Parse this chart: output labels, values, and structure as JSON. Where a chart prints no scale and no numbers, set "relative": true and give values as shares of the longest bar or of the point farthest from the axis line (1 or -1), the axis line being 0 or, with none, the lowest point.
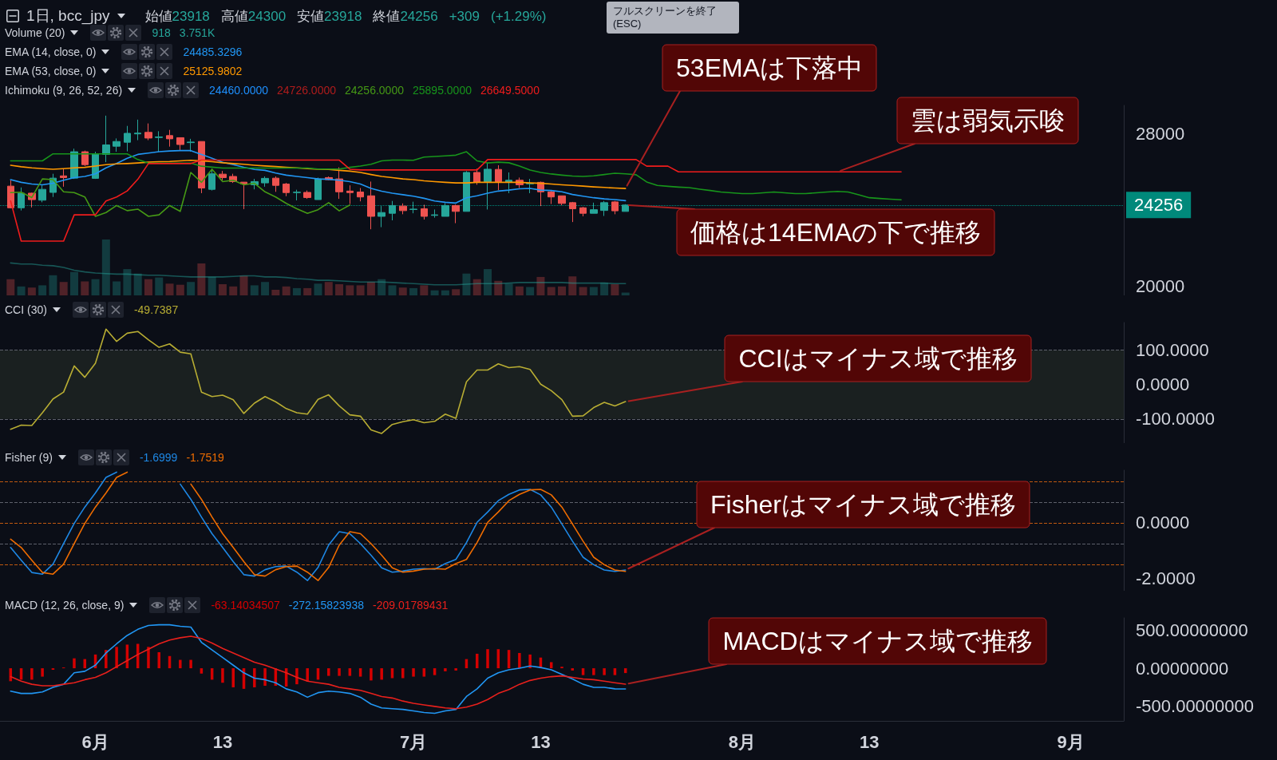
{
  "chart_data": [
    {
      "type": "candlestick",
      "title": "1日, bcc_jpy",
      "subtitle": "始値23918 高値24300 安値23918 終値24256 +309 (+1.29%)",
      "x": [
        "--05-24",
        "--05-25",
        "--05-26",
        "--05-27",
        "--05-28",
        "--05-29",
        "--05-30",
        "--05-31",
        "--06-01",
        "--06-02",
        "--06-03",
        "--06-04",
        "--06-05",
        "--06-06",
        "--06-07",
        "--06-08",
        "--06-09",
        "--06-10",
        "--06-11",
        "--06-12",
        "--06-13",
        "--06-14",
        "--06-15",
        "--06-16",
        "--06-17",
        "--06-18",
        "--06-19",
        "--06-20",
        "--06-21",
        "--06-22",
        "--06-23",
        "--06-24",
        "--06-25",
        "--06-26",
        "--06-27",
        "--06-28",
        "--06-29",
        "--06-30",
        "--07-01",
        "--07-02",
        "--07-03",
        "--07-04",
        "--07-05",
        "--07-06",
        "--07-07",
        "--07-08",
        "--07-09",
        "--07-10",
        "--07-11",
        "--07-12",
        "--07-13",
        "--07-14",
        "--07-15",
        "--07-16",
        "--07-17",
        "--07-18",
        "--07-19",
        "--07-20",
        "--07-21"
      ],
      "ohlc": [
        [
          25250,
          25560,
          24080,
          24110
        ],
        [
          24110,
          25180,
          23970,
          24880
        ],
        [
          24880,
          24900,
          24130,
          24540
        ],
        [
          24510,
          25290,
          24400,
          25080
        ],
        [
          24920,
          25900,
          24680,
          25670
        ],
        [
          25790,
          26170,
          25220,
          25700
        ],
        [
          25670,
          27220,
          25630,
          27060
        ],
        [
          27060,
          27120,
          26310,
          26380
        ],
        [
          25660,
          27060,
          25630,
          26950
        ],
        [
          26920,
          28960,
          26510,
          27420
        ],
        [
          27350,
          27760,
          27060,
          27600
        ],
        [
          27560,
          28420,
          27080,
          28030
        ],
        [
          28000,
          28750,
          27670,
          28040
        ],
        [
          28080,
          28550,
          27670,
          27780
        ],
        [
          27810,
          28140,
          27060,
          27840
        ],
        [
          27910,
          28210,
          27330,
          27740
        ],
        [
          27800,
          27800,
          27150,
          27440
        ],
        [
          27540,
          27740,
          27060,
          27570
        ],
        [
          27600,
          27600,
          24880,
          25150
        ],
        [
          25080,
          26170,
          25020,
          25900
        ],
        [
          25880,
          26050,
          25560,
          25700
        ],
        [
          25760,
          25900,
          25420,
          25490
        ],
        [
          25460,
          25460,
          24040,
          25360
        ],
        [
          25320,
          25630,
          25080,
          25490
        ],
        [
          25420,
          25760,
          25220,
          25660
        ],
        [
          25670,
          25760,
          24950,
          25290
        ],
        [
          25360,
          25420,
          24720,
          24910
        ],
        [
          24910,
          25060,
          24500,
          24930
        ],
        [
          24920,
          25020,
          24580,
          24650
        ],
        [
          24540,
          25700,
          24540,
          25630
        ],
        [
          25700,
          25760,
          25560,
          25590
        ],
        [
          25630,
          26240,
          24580,
          24950
        ],
        [
          24990,
          25290,
          24310,
          24910
        ],
        [
          24940,
          25150,
          24450,
          24680
        ],
        [
          24740,
          25490,
          22980,
          23660
        ],
        [
          23660,
          24200,
          23090,
          23860
        ],
        [
          23820,
          24470,
          23450,
          24230
        ],
        [
          24200,
          24340,
          23770,
          23960
        ],
        [
          24020,
          24430,
          23820,
          24040
        ],
        [
          24060,
          24270,
          23490,
          23660
        ],
        [
          23710,
          24020,
          23590,
          23740
        ],
        [
          23660,
          24360,
          23660,
          24230
        ],
        [
          24230,
          24280,
          23300,
          23920
        ],
        [
          23920,
          26040,
          23920,
          25970
        ],
        [
          25970,
          26170,
          25320,
          25450
        ],
        [
          25490,
          26480,
          24020,
          26140
        ],
        [
          26130,
          26350,
          25040,
          25490
        ],
        [
          25470,
          25970,
          24880,
          25560
        ],
        [
          25560,
          25700,
          25150,
          25320
        ],
        [
          25370,
          25630,
          24880,
          25400
        ],
        [
          25450,
          25490,
          24200,
          24950
        ],
        [
          24950,
          25020,
          24310,
          24680
        ],
        [
          24740,
          24740,
          24240,
          24340
        ],
        [
          24380,
          24420,
          23360,
          24060
        ],
        [
          24110,
          24160,
          23660,
          23820
        ],
        [
          23820,
          24380,
          23820,
          24010
        ],
        [
          23970,
          24470,
          23680,
          24380
        ],
        [
          24420,
          24470,
          23770,
          23950
        ],
        [
          23918,
          24300,
          23918,
          24256
        ]
      ],
      "colors": [
        "#ef5350",
        "#26a69a",
        "#ef5350",
        "#26a69a",
        "#26a69a",
        "#ef5350",
        "#26a69a",
        "#ef5350",
        "#26a69a",
        "#26a69a",
        "#26a69a",
        "#26a69a",
        "#26a69a",
        "#ef5350",
        "#26a69a",
        "#ef5350",
        "#ef5350",
        "#26a69a",
        "#ef5350",
        "#26a69a",
        "#ef5350",
        "#ef5350",
        "#ef5350",
        "#26a69a",
        "#26a69a",
        "#ef5350",
        "#ef5350",
        "#26a69a",
        "#ef5350",
        "#26a69a",
        "#ef5350",
        "#ef5350",
        "#ef5350",
        "#ef5350",
        "#ef5350",
        "#26a69a",
        "#26a69a",
        "#ef5350",
        "#26a69a",
        "#ef5350",
        "#26a69a",
        "#26a69a",
        "#ef5350",
        "#26a69a",
        "#ef5350",
        "#26a69a",
        "#ef5350",
        "#26a69a",
        "#ef5350",
        "#26a69a",
        "#ef5350",
        "#ef5350",
        "#ef5350",
        "#ef5350",
        "#ef5350",
        "#26a69a",
        "#26a69a",
        "#ef5350",
        "#26a69a"
      ],
      "series": [
        {
          "type": "line",
          "color": "#2196f3",
          "values": [
            25590,
            25450,
            25360,
            25320,
            25400,
            25560,
            25700,
            25760,
            25900,
            26210,
            26440,
            26720,
            26920,
            26990,
            27060,
            27100,
            27120,
            27120,
            26920,
            26720,
            26510,
            26380,
            26240,
            26130,
            26080,
            25940,
            25830,
            25760,
            25700,
            25630,
            25610,
            25560,
            25490,
            25360,
            25130,
            24980,
            24880,
            24800,
            24720,
            24610,
            24470,
            24400,
            24360,
            24640,
            24740,
            24880,
            24990,
            25040,
            25110,
            25130,
            25040,
            25020,
            24950,
            24810,
            24720,
            24640,
            24580,
            24540,
            24485.3296
          ]
        },
        {
          "type": "line",
          "color": "#ff9800",
          "values": [
            26350,
            26270,
            26210,
            26170,
            26140,
            26170,
            26210,
            26240,
            26310,
            26380,
            26420,
            26440,
            26470,
            26510,
            26540,
            26550,
            26580,
            26610,
            26580,
            26540,
            26480,
            26440,
            26400,
            26350,
            26310,
            26280,
            26240,
            26210,
            26170,
            26140,
            26130,
            26080,
            26040,
            25970,
            25860,
            25760,
            25700,
            25630,
            25590,
            25530,
            25490,
            25450,
            25420,
            25420,
            25450,
            25450,
            25450,
            25450,
            25450,
            25420,
            25400,
            25360,
            25320,
            25290,
            25250,
            25210,
            25180,
            25150,
            25125.9802
          ]
        },
        {
          "type": "line",
          "color": "#459915",
          "x": [
            "--05-24",
            "--05-25",
            "--05-26",
            "--05-27",
            "--05-28",
            "--05-29",
            "--05-30",
            "--05-31",
            "--06-01",
            "--06-02",
            "--06-03",
            "--06-04",
            "--06-05",
            "--06-06",
            "--06-07",
            "--06-08",
            "--06-09",
            "--06-10",
            "--06-11",
            "--06-12",
            "--06-13",
            "--06-14",
            "--06-15",
            "--06-16",
            "--06-17",
            "--06-18",
            "--06-19",
            "--06-20",
            "--06-21",
            "--06-22",
            "--06-23",
            "--06-24",
            "--06-25"
          ],
          "values": [
            24910,
            24930,
            24650,
            25630,
            25590,
            24950,
            24910,
            24680,
            23660,
            23860,
            24230,
            23960,
            24040,
            23660,
            23740,
            24230,
            23920,
            25970,
            25450,
            26140,
            25490,
            25560,
            25320,
            25400,
            24950,
            24680,
            24340,
            24060,
            23820,
            24010,
            24380,
            23950,
            24256
          ]
        },
        {
          "type": "line",
          "color": "#17951b",
          "x": [
            "--05-24",
            "--05-25",
            "--05-26",
            "--05-27",
            "--05-28",
            "--05-29",
            "--05-30",
            "--05-31",
            "--06-01",
            "--06-02",
            "--06-03",
            "--06-04",
            "--06-05",
            "--06-06",
            "--06-07",
            "--06-08",
            "--06-09",
            "--06-10",
            "--06-11",
            "--06-12",
            "--06-13",
            "--06-14",
            "--06-15",
            "--06-16",
            "--06-17",
            "--06-18",
            "--06-19",
            "--06-20",
            "--06-21",
            "--06-22",
            "--06-23",
            "--06-24",
            "--06-25",
            "--06-26",
            "--06-27",
            "--06-28",
            "--06-29",
            "--06-30",
            "--07-01",
            "--07-02",
            "--07-03",
            "--07-04",
            "--07-05",
            "--07-06",
            "--07-07",
            "--07-08",
            "--07-09",
            "--07-10",
            "--07-11",
            "--07-12",
            "--07-13",
            "--07-14",
            "--07-15",
            "--07-16",
            "--07-17",
            "--07-18",
            "--07-19",
            "--07-20",
            "--07-21",
            "--07-22",
            "--07-23",
            "--07-24",
            "--07-25",
            "--07-26",
            "--07-27",
            "--07-28",
            "--07-29",
            "--07-30",
            "--07-31",
            "--08-01",
            "--08-02",
            "--08-03",
            "--08-04",
            "--08-05",
            "--08-06",
            "--08-07",
            "--08-08",
            "--08-09",
            "--08-10",
            "--08-11",
            "--08-12",
            "--08-13",
            "--08-14",
            "--08-15",
            "--08-16"
          ],
          "values": [
            26580,
            26580,
            26580,
            26580,
            26950,
            26950,
            26950,
            26950,
            26950,
            26950,
            26950,
            26950,
            26650,
            26460,
            26460,
            26460,
            26460,
            26460,
            26300,
            26250,
            26200,
            26200,
            26200,
            26200,
            26200,
            26200,
            26200,
            26200,
            26200,
            26150,
            26150,
            26150,
            26240,
            26310,
            26400,
            26580,
            26620,
            26620,
            26610,
            26780,
            26810,
            26840,
            26880,
            27060,
            26580,
            26470,
            26510,
            26480,
            26310,
            26100,
            25970,
            25890,
            25830,
            25780,
            25760,
            25790,
            25860,
            25930,
            25895,
            25850,
            25470,
            25290,
            25240,
            25200,
            25170,
            25090,
            25020,
            24940,
            24900,
            24860,
            24860,
            24900,
            24940,
            24900,
            24860,
            24860,
            24900,
            24940,
            24970,
            24940,
            24790,
            24640,
            24600,
            24560,
            24530
          ]
        },
        {
          "type": "line",
          "color": "#f01c1c",
          "x": [
            "--05-24",
            "--05-25",
            "--05-26",
            "--05-27",
            "--05-28",
            "--05-29",
            "--05-30",
            "--05-31",
            "--06-01",
            "--06-02",
            "--06-03",
            "--06-04",
            "--06-05",
            "--06-06",
            "--06-07",
            "--06-08",
            "--06-09",
            "--06-10",
            "--06-11",
            "--06-12",
            "--06-13",
            "--06-14",
            "--06-15",
            "--06-16",
            "--06-17",
            "--06-18",
            "--06-19",
            "--06-20",
            "--06-21",
            "--06-22",
            "--06-23",
            "--06-24",
            "--06-25",
            "--06-26",
            "--06-27",
            "--06-28",
            "--06-29",
            "--06-30",
            "--07-01",
            "--07-02",
            "--07-03",
            "--07-04",
            "--07-05",
            "--07-06",
            "--07-07",
            "--07-08",
            "--07-09",
            "--07-10",
            "--07-11",
            "--07-12",
            "--07-13",
            "--07-14",
            "--07-15",
            "--07-16",
            "--07-17",
            "--07-18",
            "--07-19",
            "--07-20",
            "--07-21",
            "--07-22",
            "--07-23",
            "--07-24",
            "--07-25",
            "--07-26",
            "--07-27",
            "--07-28",
            "--07-29",
            "--07-30",
            "--07-31",
            "--08-01",
            "--08-02",
            "--08-03",
            "--08-04",
            "--08-05",
            "--08-06",
            "--08-07",
            "--08-08",
            "--08-09",
            "--08-10",
            "--08-11",
            "--08-12",
            "--08-13",
            "--08-14",
            "--08-15",
            "--08-16"
          ],
          "values": [
            24470,
            22360,
            22360,
            22360,
            22360,
            22360,
            23740,
            23740,
            23740,
            24470,
            24680,
            25000,
            25610,
            26440,
            26440,
            26440,
            26440,
            26440,
            26620,
            26620,
            26620,
            26620,
            26620,
            26620,
            26620,
            26620,
            26620,
            26620,
            26620,
            26620,
            26620,
            26620,
            26140,
            26100,
            26100,
            26100,
            26100,
            26100,
            26100,
            26100,
            26100,
            26100,
            26100,
            26100,
            26100,
            26650,
            26650,
            26650,
            26650,
            26650,
            26650,
            26650,
            26650,
            26650,
            26650,
            26650,
            26650,
            26650,
            26649.5,
            26650,
            26300,
            26300,
            26300,
            26000,
            26000,
            26000,
            26000,
            26000,
            26000,
            26000,
            26000,
            26000,
            26000,
            26000,
            26000,
            26000,
            26000,
            26000,
            26000,
            26000,
            26000,
            26000,
            26000,
            26000,
            26000
          ]
        }
      ],
      "xlim": [
        "--05-23",
        "--09-06"
      ],
      "ylim": [
        19500,
        29500
      ],
      "yticks": [
        20000,
        28000
      ],
      "ref_lines": [
        {
          "axis": "y",
          "value": 24256,
          "label": "24256",
          "color": "#00897b",
          "line_style": "dotted"
        }
      ],
      "annotations": [
        "EMA (14, close, 0)",
        "24485.3296",
        "EMA (53, close, 0)",
        "25125.9802",
        "Ichimoku (9, 26, 52, 26)",
        "24460.0000",
        "24726.0000",
        "24256.0000",
        "25895.0000",
        "26649.5000",
        "フルスクリーンを終了 (ESC)",
        {
          "text": "53EMAは下落中",
          "x": "--07-21",
          "y": 25125.9802
        },
        {
          "text": "雲は弱気示唆",
          "x": "--08-10",
          "y": 26000
        },
        {
          "text": "価格は14EMAの下で推移",
          "x": "--07-21",
          "y": 24256
        }
      ],
      "tick_labels": "y"
    },
    {
      "type": "bar",
      "relative": true,
      "x": [
        "--05-24",
        "--05-25",
        "--05-26",
        "--05-27",
        "--05-28",
        "--05-29",
        "--05-30",
        "--05-31",
        "--06-01",
        "--06-02",
        "--06-03",
        "--06-04",
        "--06-05",
        "--06-06",
        "--06-07",
        "--06-08",
        "--06-09",
        "--06-10",
        "--06-11",
        "--06-12",
        "--06-13",
        "--06-14",
        "--06-15",
        "--06-16",
        "--06-17",
        "--06-18",
        "--06-19",
        "--06-20",
        "--06-21",
        "--06-22",
        "--06-23",
        "--06-24",
        "--06-25",
        "--06-26",
        "--06-27",
        "--06-28",
        "--06-29",
        "--06-30",
        "--07-01",
        "--07-02",
        "--07-03",
        "--07-04",
        "--07-05",
        "--07-06",
        "--07-07",
        "--07-08",
        "--07-09",
        "--07-10",
        "--07-11",
        "--07-12",
        "--07-13",
        "--07-14",
        "--07-15",
        "--07-16",
        "--07-17",
        "--07-18",
        "--07-19",
        "--07-20",
        "--07-21"
      ],
      "series": [
        {
          "type": "bar",
          "color": "#26a69a",
          "colors": [
            "#ef5350",
            "#26a69a",
            "#ef5350",
            "#26a69a",
            "#26a69a",
            "#ef5350",
            "#26a69a",
            "#ef5350",
            "#26a69a",
            "#26a69a",
            "#26a69a",
            "#26a69a",
            "#26a69a",
            "#ef5350",
            "#26a69a",
            "#ef5350",
            "#ef5350",
            "#26a69a",
            "#ef5350",
            "#26a69a",
            "#ef5350",
            "#ef5350",
            "#ef5350",
            "#26a69a",
            "#26a69a",
            "#ef5350",
            "#ef5350",
            "#26a69a",
            "#ef5350",
            "#26a69a",
            "#ef5350",
            "#ef5350",
            "#ef5350",
            "#ef5350",
            "#ef5350",
            "#26a69a",
            "#26a69a",
            "#ef5350",
            "#26a69a",
            "#ef5350",
            "#26a69a",
            "#26a69a",
            "#ef5350",
            "#26a69a",
            "#ef5350",
            "#26a69a",
            "#ef5350",
            "#26a69a",
            "#ef5350",
            "#26a69a",
            "#ef5350",
            "#ef5350",
            "#ef5350",
            "#ef5350",
            "#ef5350",
            "#26a69a",
            "#26a69a",
            "#ef5350",
            "#26a69a"
          ],
          "values": [
            0.29,
            0.16,
            0.14,
            0.18,
            0.36,
            0.24,
            0.42,
            0.25,
            0.29,
            1,
            0.25,
            0.47,
            0.39,
            0.29,
            0.32,
            0.21,
            0.19,
            0.24,
            0.57,
            0.33,
            0.2,
            0.16,
            0.35,
            0.18,
            0.24,
            0.1,
            0.16,
            0.13,
            0.13,
            0.21,
            0.24,
            0.2,
            0.18,
            0.18,
            0.24,
            0.29,
            0.18,
            0.14,
            0.13,
            0.18,
            0.09,
            0.09,
            0.11,
            0.39,
            0.29,
            0.47,
            0.26,
            0.21,
            0.16,
            0.15,
            0.33,
            0.15,
            0.16,
            0.34,
            0.15,
            0.15,
            0.23,
            0.2,
            0.05
          ]
        },
        {
          "type": "line",
          "color": "#26a69a",
          "values": [
            0.58,
            0.56,
            0.56,
            0.54,
            0.53,
            0.5,
            0.45,
            0.42,
            0.4,
            0.39,
            0.38,
            0.38,
            0.37,
            0.36,
            0.36,
            0.35,
            0.34,
            0.33,
            0.33,
            0.33,
            0.33,
            0.34,
            0.35,
            0.35,
            0.33,
            0.33,
            0.32,
            0.3,
            0.29,
            0.27,
            0.27,
            0.26,
            0.25,
            0.24,
            0.24,
            0.24,
            0.23,
            0.22,
            0.21,
            0.2,
            0.19,
            0.19,
            0.19,
            0.2,
            0.21,
            0.21,
            0.21,
            0.22,
            0.23,
            0.23,
            0.23,
            0.23,
            0.23,
            0.22,
            0.22,
            0.22,
            0.22,
            0.21,
            0.21
          ]
        }
      ],
      "xlim": [
        "--05-23",
        "--09-06"
      ],
      "annotations": [
        "Volume (20)",
        "918",
        "3.751K"
      ],
      "tick_labels": false
    },
    {
      "type": "line",
      "x": [
        "--05-24",
        "--05-25",
        "--05-26",
        "--05-27",
        "--05-28",
        "--05-29",
        "--05-30",
        "--05-31",
        "--06-01",
        "--06-02",
        "--06-03",
        "--06-04",
        "--06-05",
        "--06-06",
        "--06-07",
        "--06-08",
        "--06-09",
        "--06-10",
        "--06-11",
        "--06-12",
        "--06-13",
        "--06-14",
        "--06-15",
        "--06-16",
        "--06-17",
        "--06-18",
        "--06-19",
        "--06-20",
        "--06-21",
        "--06-22",
        "--06-23",
        "--06-24",
        "--06-25",
        "--06-26",
        "--06-27",
        "--06-28",
        "--06-29",
        "--06-30",
        "--07-01",
        "--07-02",
        "--07-03",
        "--07-04",
        "--07-05",
        "--07-06",
        "--07-07",
        "--07-08",
        "--07-09",
        "--07-10",
        "--07-11",
        "--07-12",
        "--07-13",
        "--07-14",
        "--07-15",
        "--07-16",
        "--07-17",
        "--07-18",
        "--07-19",
        "--07-20",
        "--07-21"
      ],
      "series": [
        {
          "color": "#b8ad33",
          "values": [
            -130,
            -118,
            -119,
            -82,
            -42,
            -22,
            54,
            21,
            62,
            161,
            125,
            149,
            154,
            130,
            108,
            118,
            94,
            89,
            -22,
            -35,
            -31,
            -44,
            -84,
            -54,
            -35,
            -50,
            -70,
            -82,
            -86,
            -43,
            -30,
            -62,
            -88,
            -92,
            -132,
            -142,
            -116,
            -108,
            -102,
            -111,
            -107,
            -86,
            -98,
            8,
            42,
            42,
            60,
            49,
            52,
            44,
            1,
            -18,
            -44,
            -92,
            -91,
            -67,
            -52,
            -62,
            -49.7387
          ]
        }
      ],
      "xlim": [
        "--05-23",
        "--09-06"
      ],
      "ylim": [
        -170,
        180
      ],
      "yticks": [
        {
          "value": 100,
          "label": "100.0000"
        },
        {
          "value": 0,
          "label": "0.0000"
        },
        {
          "value": -100,
          "label": "-100.0000"
        }
      ],
      "bands": [
        {
          "axis": "y",
          "from": -100,
          "to": 100,
          "color": "#1a2020"
        }
      ],
      "ref_lines": [
        {
          "axis": "y",
          "value": 100,
          "color": "#5d606b",
          "line_style": "dashed"
        },
        {
          "axis": "y",
          "value": -100,
          "color": "#5d606b",
          "line_style": "dashed"
        }
      ],
      "annotations": [
        "CCI (30)",
        "-49.7387",
        {
          "text": "CCIはマイナス域で推移",
          "x": "--07-21",
          "y": -49.7387
        }
      ],
      "tick_labels": "y"
    },
    {
      "type": "line",
      "x": [
        "--05-24",
        "--05-25",
        "--05-26",
        "--05-27",
        "--05-28",
        "--05-29",
        "--05-30",
        "--05-31",
        "--06-01",
        "--06-02",
        "--06-03",
        "--06-04",
        "--06-05",
        "--06-06",
        "--06-07",
        "--06-08",
        "--06-09",
        "--06-10",
        "--06-11",
        "--06-12",
        "--06-13",
        "--06-14",
        "--06-15",
        "--06-16",
        "--06-17",
        "--06-18",
        "--06-19",
        "--06-20",
        "--06-21",
        "--06-22",
        "--06-23",
        "--06-24",
        "--06-25",
        "--06-26",
        "--06-27",
        "--06-28",
        "--06-29",
        "--06-30",
        "--07-01",
        "--07-02",
        "--07-03",
        "--07-04",
        "--07-05",
        "--07-06",
        "--07-07",
        "--07-08",
        "--07-09",
        "--07-10",
        "--07-11",
        "--07-12",
        "--07-13",
        "--07-14",
        "--07-15",
        "--07-16",
        "--07-17",
        "--07-18",
        "--07-19",
        "--07-20",
        "--07-21"
      ],
      "series": [
        {
          "color": "#1e88e5",
          "values": [
            -0.89,
            -1.35,
            -1.79,
            -1.85,
            -1.49,
            -0.75,
            -0.02,
            0.57,
            1.08,
            1.64,
            1.83,
            null,
            null,
            null,
            null,
            null,
            1.4,
            0.85,
            0.21,
            -0.39,
            -0.89,
            -1.4,
            -1.87,
            -1.92,
            -1.69,
            -1.58,
            -1.56,
            -1.78,
            -2.08,
            -1.61,
            -0.8,
            -0.32,
            -0.39,
            -0.75,
            -1.17,
            -1.62,
            -1.78,
            -1.74,
            -1.67,
            -1.65,
            -1.67,
            -1.47,
            -1.32,
            -0.71,
            0.02,
            0.39,
            0.8,
            1.03,
            1.19,
            1.21,
            1.01,
            0.57,
            -0.04,
            -0.66,
            -1.24,
            -1.51,
            -1.7,
            -1.7519,
            -1.6999
          ]
        },
        {
          "color": "#ef6c00",
          "values": [
            -0.59,
            -0.89,
            -1.35,
            -1.79,
            -1.85,
            -1.49,
            -0.75,
            -0.02,
            0.57,
            1.08,
            1.64,
            1.83,
            null,
            null,
            null,
            null,
            null,
            1.4,
            0.85,
            0.21,
            -0.39,
            -0.89,
            -1.4,
            -1.87,
            -1.92,
            -1.69,
            -1.58,
            -1.56,
            -1.78,
            -2.08,
            -1.61,
            -0.8,
            -0.32,
            -0.39,
            -0.75,
            -1.17,
            -1.62,
            -1.78,
            -1.74,
            -1.67,
            -1.65,
            -1.67,
            -1.47,
            -1.32,
            -0.71,
            0.02,
            0.39,
            0.8,
            1.03,
            1.19,
            1.21,
            1.01,
            0.57,
            -0.04,
            -0.66,
            -1.24,
            -1.51,
            -1.7,
            -1.7519
          ]
        }
      ],
      "xlim": [
        "--05-23",
        "--09-06"
      ],
      "ylim": [
        -2.45,
        1.9
      ],
      "yticks": [
        {
          "value": 0,
          "label": "0.0000"
        },
        {
          "value": -2,
          "label": "-2.0000"
        }
      ],
      "ref_lines": [
        {
          "axis": "y",
          "value": 1.5,
          "color": "#c0580f",
          "line_style": "dashed"
        },
        {
          "axis": "y",
          "value": 0.75,
          "color": "#5d606b",
          "line_style": "dashed"
        },
        {
          "axis": "y",
          "value": 0,
          "color": "#c0580f",
          "line_style": "dashed"
        },
        {
          "axis": "y",
          "value": -0.75,
          "color": "#5d606b",
          "line_style": "dashed"
        },
        {
          "axis": "y",
          "value": -1.5,
          "color": "#c0580f",
          "line_style": "dashed"
        }
      ],
      "annotations": [
        "Fisher (9)",
        "-1.6999",
        "-1.7519",
        {
          "text": "Fisherはマイナス域で推移",
          "x": "--07-21",
          "y": -1.6999
        }
      ],
      "tick_labels": "y"
    },
    {
      "type": "line",
      "x": [
        "--05-24",
        "--05-25",
        "--05-26",
        "--05-27",
        "--05-28",
        "--05-29",
        "--05-30",
        "--05-31",
        "--06-01",
        "--06-02",
        "--06-03",
        "--06-04",
        "--06-05",
        "--06-06",
        "--06-07",
        "--06-08",
        "--06-09",
        "--06-10",
        "--06-11",
        "--06-12",
        "--06-13",
        "--06-14",
        "--06-15",
        "--06-16",
        "--06-17",
        "--06-18",
        "--06-19",
        "--06-20",
        "--06-21",
        "--06-22",
        "--06-23",
        "--06-24",
        "--06-25",
        "--06-26",
        "--06-27",
        "--06-28",
        "--06-29",
        "--06-30",
        "--07-01",
        "--07-02",
        "--07-03",
        "--07-04",
        "--07-05",
        "--07-06",
        "--07-07",
        "--07-08",
        "--07-09",
        "--07-10",
        "--07-11",
        "--07-12",
        "--07-13",
        "--07-14",
        "--07-15",
        "--07-16",
        "--07-17",
        "--07-18",
        "--07-19",
        "--07-20",
        "--07-21"
      ],
      "series": [
        {
          "type": "bar",
          "color": "#d50000",
          "values": [
            -170,
            -150,
            -150,
            -110,
            -20,
            10,
            130,
            120,
            180,
            240,
            280,
            310,
            320,
            280,
            210,
            160,
            110,
            110,
            -70,
            -150,
            -190,
            -250,
            -270,
            -250,
            -230,
            -230,
            -240,
            -210,
            -170,
            -150,
            -100,
            -100,
            -100,
            -110,
            -160,
            -150,
            -130,
            -130,
            -110,
            -110,
            -90,
            -40,
            -30,
            120,
            190,
            250,
            250,
            240,
            200,
            180,
            140,
            80,
            20,
            -30,
            -90,
            -90,
            -90,
            -90,
            -63.14034507
          ]
        },
        {
          "type": "line",
          "color": "#2196f3",
          "values": [
            -300,
            -330,
            -330,
            -310,
            -250,
            -210,
            -60,
            -40,
            40,
            200,
            320,
            430,
            510,
            560,
            570,
            570,
            550,
            540,
            340,
            240,
            140,
            40,
            -60,
            -130,
            -150,
            -190,
            -270,
            -310,
            -380,
            -320,
            -300,
            -310,
            -330,
            -380,
            -470,
            -520,
            -530,
            -540,
            -560,
            -580,
            -590,
            -560,
            -540,
            -370,
            -270,
            -130,
            -60,
            -20,
            0,
            30,
            10,
            -20,
            -80,
            -140,
            -210,
            -250,
            -250,
            -270,
            -272.15823938
          ]
        },
        {
          "type": "line",
          "color": "#e8201c",
          "values": [
            -110,
            -170,
            -210,
            -230,
            -230,
            -210,
            -190,
            -150,
            -120,
            -60,
            20,
            100,
            180,
            250,
            320,
            370,
            400,
            420,
            390,
            330,
            260,
            200,
            140,
            80,
            40,
            -10,
            -60,
            -120,
            -170,
            -190,
            -210,
            -250,
            -270,
            -290,
            -330,
            -370,
            -390,
            -430,
            -460,
            -480,
            -500,
            -520,
            -530,
            -510,
            -470,
            -410,
            -330,
            -280,
            -210,
            -160,
            -130,
            -110,
            -100,
            -120,
            -140,
            -150,
            -170,
            -190,
            -209.01789431
          ]
        }
      ],
      "xlim": [
        "--05-23",
        "--09-06"
      ],
      "xticks": [
        {
          "value": "--06-01",
          "label": "6月"
        },
        {
          "value": "--06-13",
          "label": "13"
        },
        {
          "value": "--07-01",
          "label": "7月"
        },
        {
          "value": "--07-13",
          "label": "13"
        },
        {
          "value": "--08-01",
          "label": "8月"
        },
        {
          "value": "--08-13",
          "label": "13"
        },
        {
          "value": "--09-01",
          "label": "9月"
        }
      ],
      "ylim": [
        -690,
        660
      ],
      "yticks": [
        {
          "value": 500,
          "label": "500.00000000"
        },
        {
          "value": 0,
          "label": "0.00000000"
        },
        {
          "value": -500,
          "label": "-500.00000000"
        }
      ],
      "annotations": [
        "MACD (12, 26, close, 9)",
        "-63.14034507",
        "-272.15823938",
        "-209.01789431",
        {
          "text": "MACDはマイナス域で推移",
          "x": "--07-21",
          "y": -209.01789431
        }
      ]
    }
  ]
}
